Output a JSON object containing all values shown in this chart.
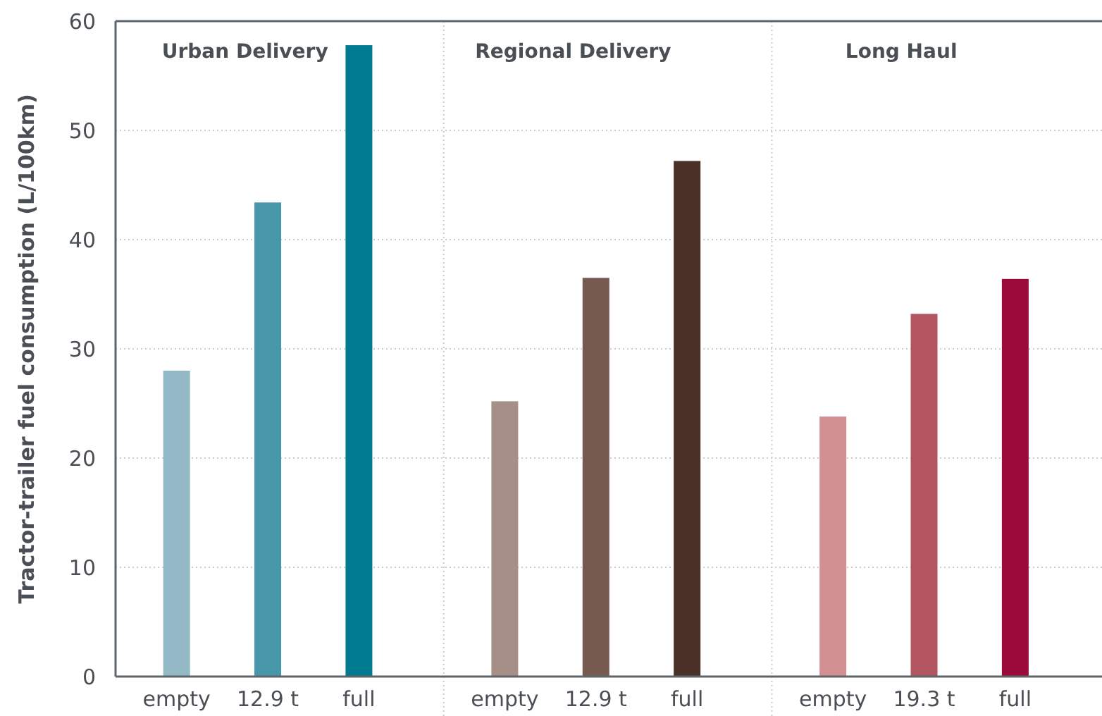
{
  "chart_data": {
    "type": "bar",
    "ylabel": "Tractor-trailer fuel consumption (L/100km)",
    "categories": [
      "empty",
      "12.9 t",
      "full",
      "empty",
      "12.9 t",
      "full",
      "empty",
      "19.3 t",
      "full"
    ],
    "values": [
      28,
      43.4,
      57.8,
      25.2,
      36.5,
      47.2,
      23.8,
      33.2,
      36.4
    ],
    "colors": [
      "#93b9c6",
      "#4896aa",
      "#007b8f",
      "#a68f86",
      "#765a50",
      "#4b3028",
      "#d29092",
      "#b35560",
      "#9b0a3a"
    ],
    "annotations": [
      "Urban Delivery",
      "Regional Delivery",
      "Long Haul"
    ],
    "ylim": [
      0,
      60
    ],
    "yticks": [
      0,
      10,
      20,
      30,
      40,
      50,
      60
    ],
    "grid": "y"
  }
}
